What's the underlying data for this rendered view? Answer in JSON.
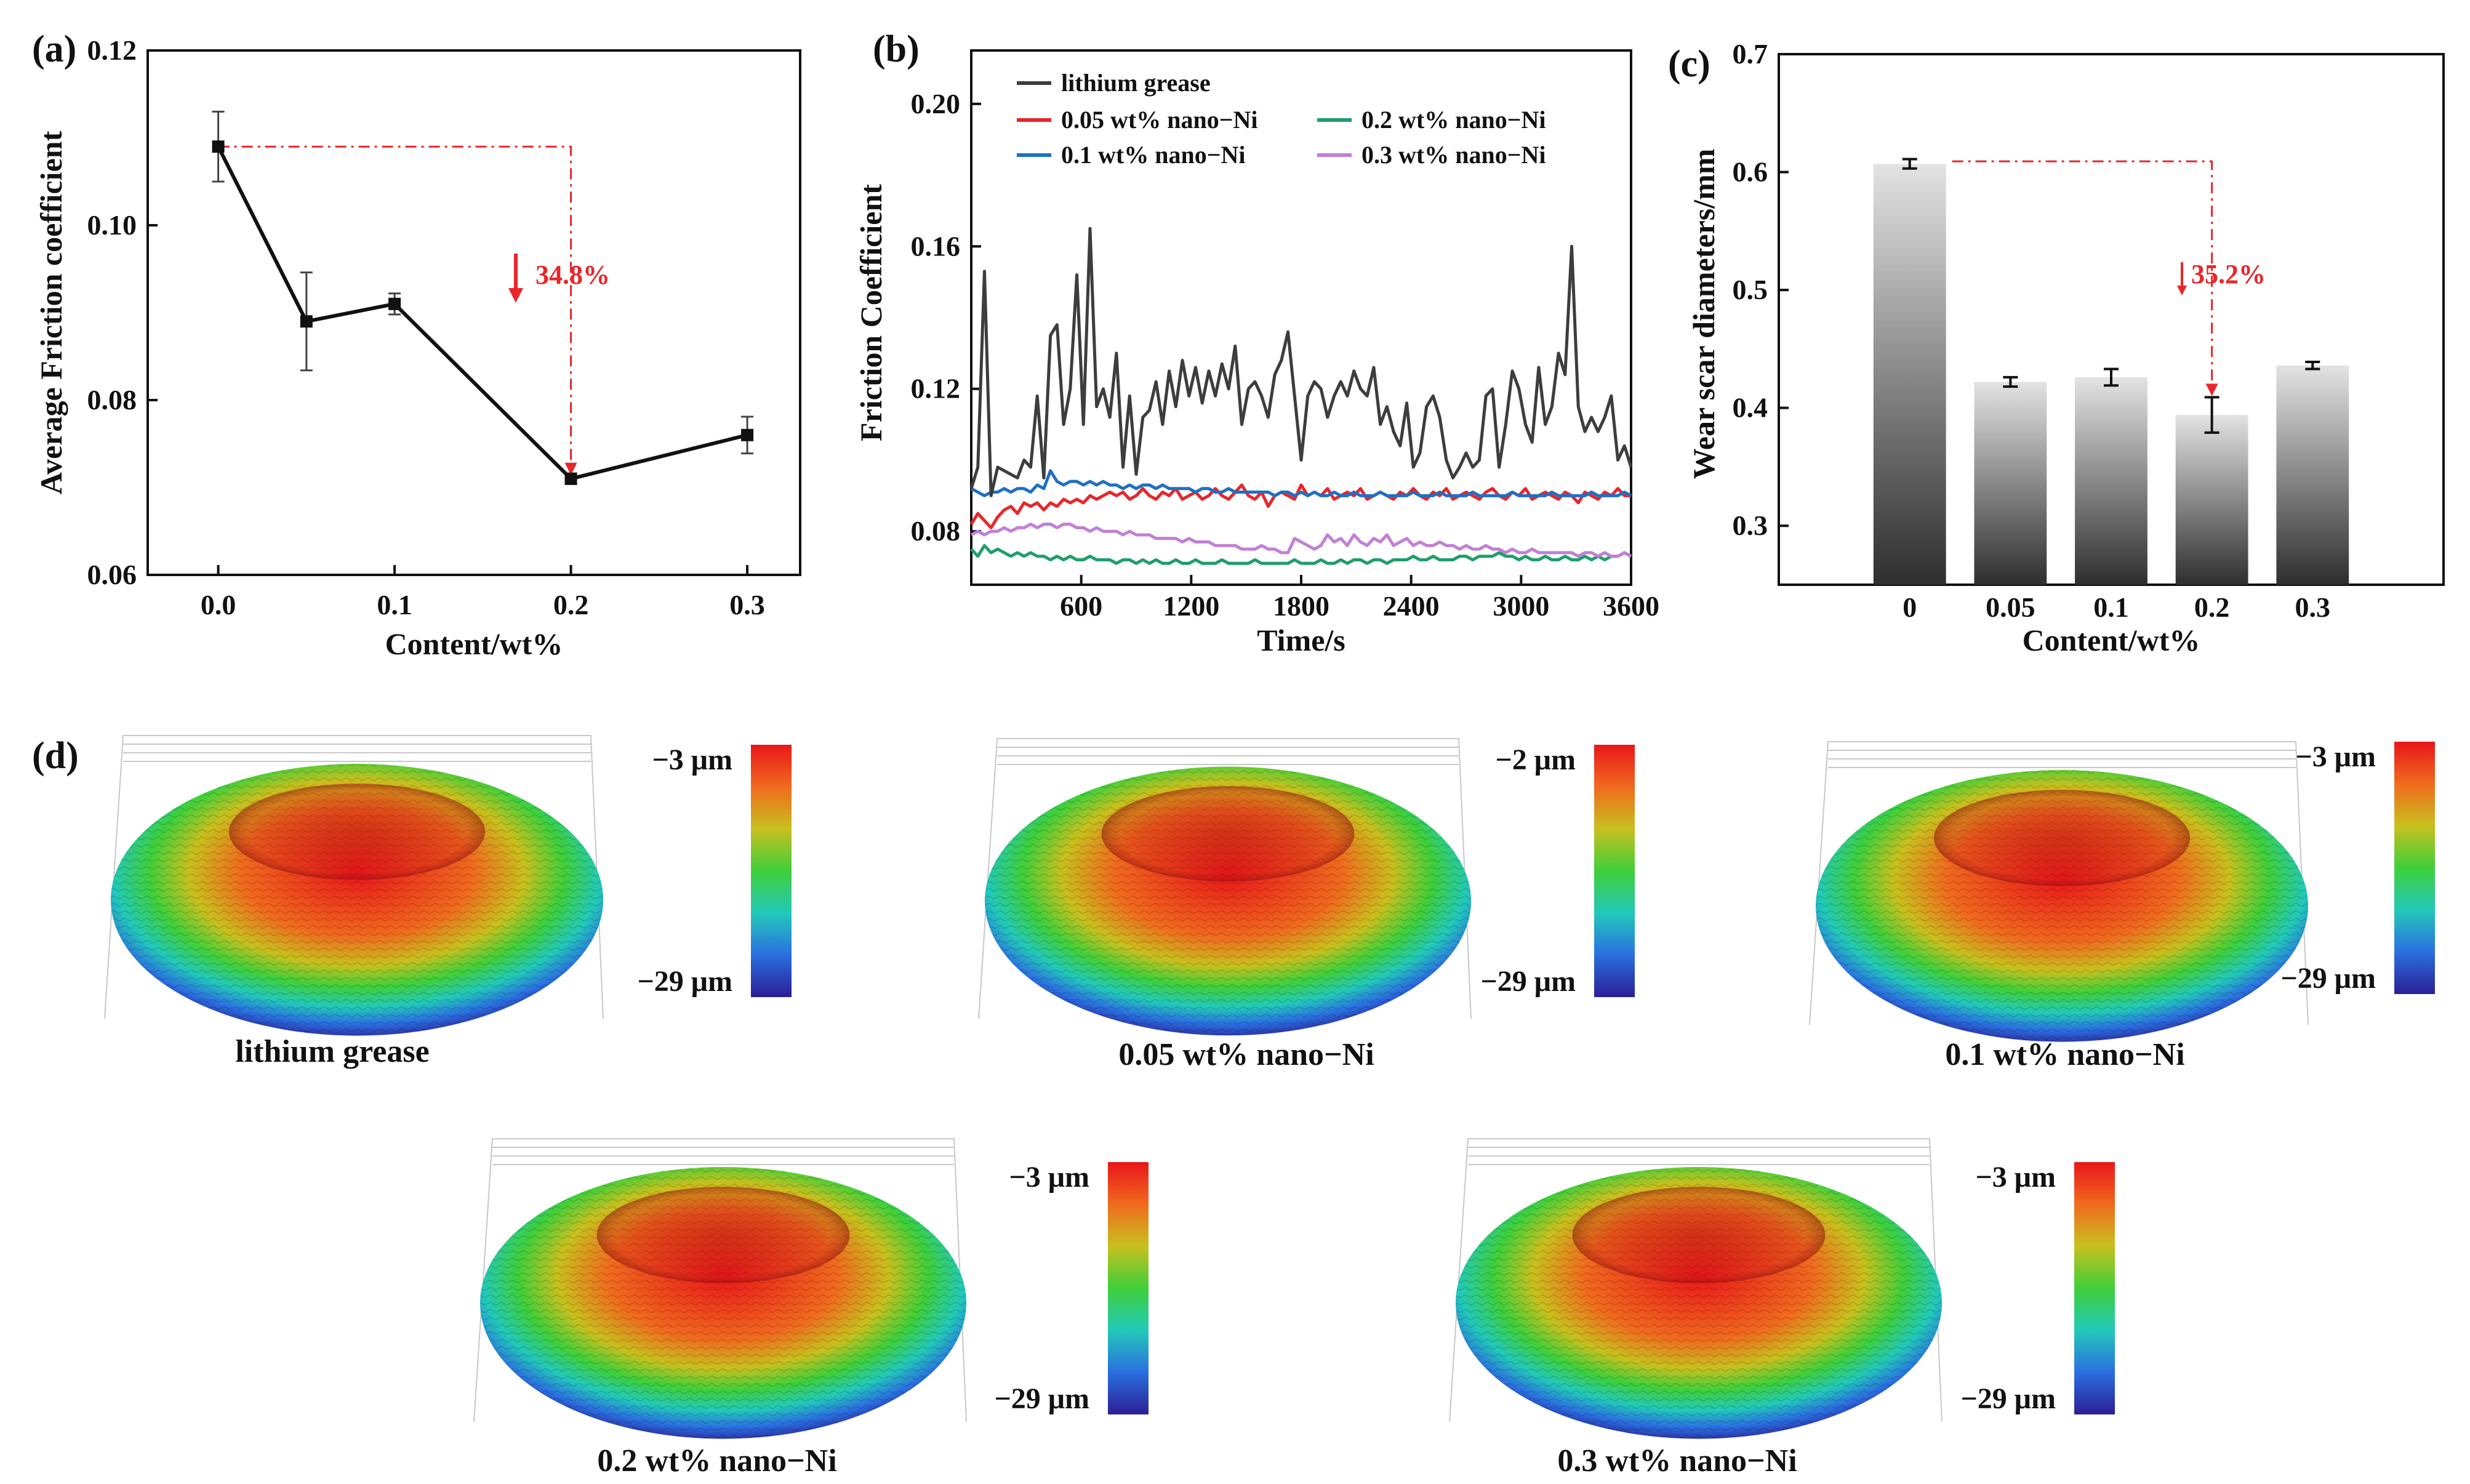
{
  "chart_data": [
    {
      "panel": "(a)",
      "type": "line",
      "x": [
        0.0,
        0.05,
        0.1,
        0.2,
        0.3
      ],
      "values": [
        0.109,
        0.089,
        0.091,
        0.071,
        0.076
      ],
      "errors": [
        0.004,
        0.0056,
        0.0012,
        0.0006,
        0.0021
      ],
      "xlabel": "Content/wt%",
      "ylabel": "Average Friction coefficient",
      "xlim": [
        -0.04,
        0.33
      ],
      "ylim": [
        0.06,
        0.12
      ],
      "xticks": [
        "0.0",
        "0.1",
        "0.2",
        "0.3"
      ],
      "yticks": [
        "0.06",
        "0.08",
        "0.10",
        "0.12"
      ],
      "annotation": "34.8%",
      "color": "#111111",
      "accent": "#e8262a"
    },
    {
      "panel": "(b)",
      "type": "line",
      "xlabel": "Time/s",
      "ylabel": "Friction Coefficient",
      "xlim": [
        0,
        3600
      ],
      "ylim": [
        0.065,
        0.215
      ],
      "xticks": [
        "600",
        "1200",
        "1800",
        "2400",
        "3000",
        "3600"
      ],
      "yticks": [
        "0.08",
        "0.12",
        "0.16",
        "0.20"
      ],
      "series": [
        {
          "name": "lithium grease",
          "color": "#3d3d3d",
          "values": [
            0.092,
            0.098,
            0.153,
            0.09,
            0.098,
            0.097,
            0.096,
            0.095,
            0.1,
            0.098,
            0.118,
            0.095,
            0.135,
            0.138,
            0.11,
            0.12,
            0.152,
            0.11,
            0.165,
            0.115,
            0.12,
            0.112,
            0.13,
            0.098,
            0.118,
            0.096,
            0.112,
            0.114,
            0.122,
            0.11,
            0.125,
            0.115,
            0.128,
            0.118,
            0.126,
            0.116,
            0.125,
            0.118,
            0.127,
            0.12,
            0.132,
            0.11,
            0.12,
            0.122,
            0.118,
            0.112,
            0.124,
            0.128,
            0.136,
            0.118,
            0.1,
            0.118,
            0.122,
            0.12,
            0.112,
            0.118,
            0.122,
            0.118,
            0.125,
            0.12,
            0.118,
            0.126,
            0.11,
            0.115,
            0.108,
            0.104,
            0.116,
            0.098,
            0.102,
            0.115,
            0.118,
            0.112,
            0.1,
            0.095,
            0.098,
            0.102,
            0.098,
            0.1,
            0.118,
            0.12,
            0.098,
            0.11,
            0.125,
            0.12,
            0.11,
            0.105,
            0.126,
            0.11,
            0.115,
            0.13,
            0.124,
            0.16,
            0.115,
            0.108,
            0.112,
            0.108,
            0.112,
            0.118,
            0.1,
            0.104,
            0.098
          ]
        },
        {
          "name": "0.05 wt% nano−Ni",
          "color": "#e8262a",
          "values": [
            0.082,
            0.085,
            0.083,
            0.081,
            0.084,
            0.086,
            0.087,
            0.085,
            0.088,
            0.087,
            0.088,
            0.086,
            0.088,
            0.087,
            0.089,
            0.088,
            0.089,
            0.088,
            0.09,
            0.089,
            0.09,
            0.091,
            0.09,
            0.091,
            0.089,
            0.09,
            0.092,
            0.09,
            0.089,
            0.091,
            0.09,
            0.092,
            0.089,
            0.09,
            0.091,
            0.089,
            0.09,
            0.092,
            0.09,
            0.089,
            0.091,
            0.093,
            0.09,
            0.089,
            0.091,
            0.087,
            0.09,
            0.091,
            0.09,
            0.089,
            0.093,
            0.09,
            0.091,
            0.09,
            0.092,
            0.089,
            0.09,
            0.091,
            0.09,
            0.092,
            0.089,
            0.09,
            0.091,
            0.09,
            0.089,
            0.091,
            0.09,
            0.092,
            0.09,
            0.089,
            0.091,
            0.09,
            0.092,
            0.089,
            0.09,
            0.091,
            0.09,
            0.089,
            0.091,
            0.092,
            0.09,
            0.089,
            0.091,
            0.09,
            0.092,
            0.089,
            0.09,
            0.091,
            0.09,
            0.089,
            0.091,
            0.09,
            0.088,
            0.091,
            0.09,
            0.089,
            0.091,
            0.09,
            0.092,
            0.09,
            0.09
          ]
        },
        {
          "name": "0.2 wt% nano−Ni",
          "color": "#1e9e6a",
          "values": [
            0.075,
            0.073,
            0.076,
            0.074,
            0.075,
            0.074,
            0.073,
            0.074,
            0.073,
            0.074,
            0.073,
            0.073,
            0.072,
            0.073,
            0.072,
            0.073,
            0.072,
            0.072,
            0.073,
            0.072,
            0.072,
            0.072,
            0.071,
            0.072,
            0.072,
            0.071,
            0.072,
            0.071,
            0.072,
            0.071,
            0.071,
            0.072,
            0.071,
            0.071,
            0.072,
            0.071,
            0.071,
            0.071,
            0.072,
            0.071,
            0.071,
            0.071,
            0.071,
            0.072,
            0.071,
            0.071,
            0.071,
            0.071,
            0.071,
            0.072,
            0.071,
            0.071,
            0.071,
            0.072,
            0.071,
            0.071,
            0.072,
            0.071,
            0.072,
            0.072,
            0.071,
            0.072,
            0.072,
            0.071,
            0.072,
            0.072,
            0.072,
            0.073,
            0.072,
            0.072,
            0.073,
            0.072,
            0.072,
            0.072,
            0.073,
            0.073,
            0.072,
            0.073,
            0.073,
            0.073,
            0.074,
            0.073,
            0.073,
            0.072,
            0.073,
            0.072,
            0.072,
            0.073,
            0.072,
            0.072,
            0.073,
            0.072,
            0.072,
            0.073,
            0.072,
            0.073,
            0.072,
            0.073,
            0.073,
            0.074,
            0.073
          ]
        },
        {
          "name": "0.1 wt% nano−Ni",
          "color": "#1f6fc4",
          "values": [
            0.092,
            0.091,
            0.09,
            0.091,
            0.091,
            0.092,
            0.091,
            0.092,
            0.092,
            0.091,
            0.093,
            0.092,
            0.097,
            0.094,
            0.093,
            0.094,
            0.094,
            0.093,
            0.094,
            0.093,
            0.094,
            0.093,
            0.093,
            0.092,
            0.093,
            0.092,
            0.093,
            0.093,
            0.092,
            0.093,
            0.092,
            0.092,
            0.092,
            0.092,
            0.091,
            0.092,
            0.092,
            0.091,
            0.091,
            0.092,
            0.091,
            0.091,
            0.091,
            0.091,
            0.091,
            0.091,
            0.09,
            0.091,
            0.091,
            0.09,
            0.091,
            0.09,
            0.091,
            0.09,
            0.09,
            0.091,
            0.09,
            0.09,
            0.091,
            0.09,
            0.09,
            0.09,
            0.091,
            0.09,
            0.09,
            0.09,
            0.09,
            0.091,
            0.09,
            0.09,
            0.09,
            0.091,
            0.09,
            0.09,
            0.09,
            0.09,
            0.091,
            0.09,
            0.09,
            0.09,
            0.09,
            0.09,
            0.091,
            0.09,
            0.09,
            0.09,
            0.09,
            0.09,
            0.091,
            0.09,
            0.09,
            0.09,
            0.09,
            0.09,
            0.091,
            0.09,
            0.09,
            0.09,
            0.09,
            0.091,
            0.09
          ]
        },
        {
          "name": "0.3 wt% nano−Ni",
          "color": "#c17fd6",
          "values": [
            0.079,
            0.08,
            0.079,
            0.08,
            0.08,
            0.081,
            0.08,
            0.081,
            0.081,
            0.082,
            0.081,
            0.082,
            0.082,
            0.081,
            0.082,
            0.082,
            0.081,
            0.081,
            0.08,
            0.081,
            0.08,
            0.08,
            0.08,
            0.079,
            0.08,
            0.079,
            0.079,
            0.079,
            0.078,
            0.078,
            0.078,
            0.078,
            0.077,
            0.078,
            0.077,
            0.077,
            0.077,
            0.076,
            0.076,
            0.076,
            0.076,
            0.075,
            0.075,
            0.075,
            0.076,
            0.075,
            0.075,
            0.074,
            0.074,
            0.078,
            0.077,
            0.076,
            0.075,
            0.076,
            0.079,
            0.077,
            0.078,
            0.076,
            0.079,
            0.077,
            0.076,
            0.078,
            0.077,
            0.079,
            0.076,
            0.077,
            0.078,
            0.076,
            0.077,
            0.076,
            0.076,
            0.077,
            0.076,
            0.076,
            0.075,
            0.076,
            0.075,
            0.075,
            0.076,
            0.075,
            0.075,
            0.074,
            0.075,
            0.074,
            0.074,
            0.075,
            0.074,
            0.074,
            0.074,
            0.074,
            0.074,
            0.074,
            0.073,
            0.074,
            0.074,
            0.073,
            0.074,
            0.073,
            0.073,
            0.074,
            0.073
          ]
        }
      ]
    },
    {
      "panel": "(c)",
      "type": "bar",
      "categories": [
        "0",
        "0.05",
        "0.1",
        "0.2",
        "0.3"
      ],
      "values": [
        0.607,
        0.422,
        0.426,
        0.394,
        0.436
      ],
      "errors": [
        0.004,
        0.004,
        0.007,
        0.015,
        0.003
      ],
      "xlabel": "Content/wt%",
      "ylabel": "Wear scar diameters/mm",
      "ylim": [
        0.25,
        0.7
      ],
      "yticks": [
        "0.3",
        "0.4",
        "0.5",
        "0.6",
        "0.7"
      ],
      "annotation": "35.2%",
      "bar_top_color": "#e3e3e3",
      "bar_bottom_color": "#2e2e2e",
      "accent": "#e8262a"
    }
  ],
  "panel_d": {
    "label": "(d)",
    "surfaces": [
      {
        "caption": "lithium grease",
        "max_label": "−3 μm",
        "min_label": "−29 μm"
      },
      {
        "caption": "0.05 wt% nano−Ni",
        "max_label": "−2 μm",
        "min_label": "−29 μm"
      },
      {
        "caption": "0.1 wt% nano−Ni",
        "max_label": "−3 μm",
        "min_label": "−29 μm"
      },
      {
        "caption": "0.2 wt% nano−Ni",
        "max_label": "−3 μm",
        "min_label": "−29 μm"
      },
      {
        "caption": "0.3 wt% nano−Ni",
        "max_label": "−3 μm",
        "min_label": "−29 μm"
      }
    ],
    "colormap": [
      "#e8161a",
      "#f06a1e",
      "#c8c01e",
      "#3fcf3a",
      "#22c9b9",
      "#2a6fe0",
      "#2b1f95"
    ]
  }
}
